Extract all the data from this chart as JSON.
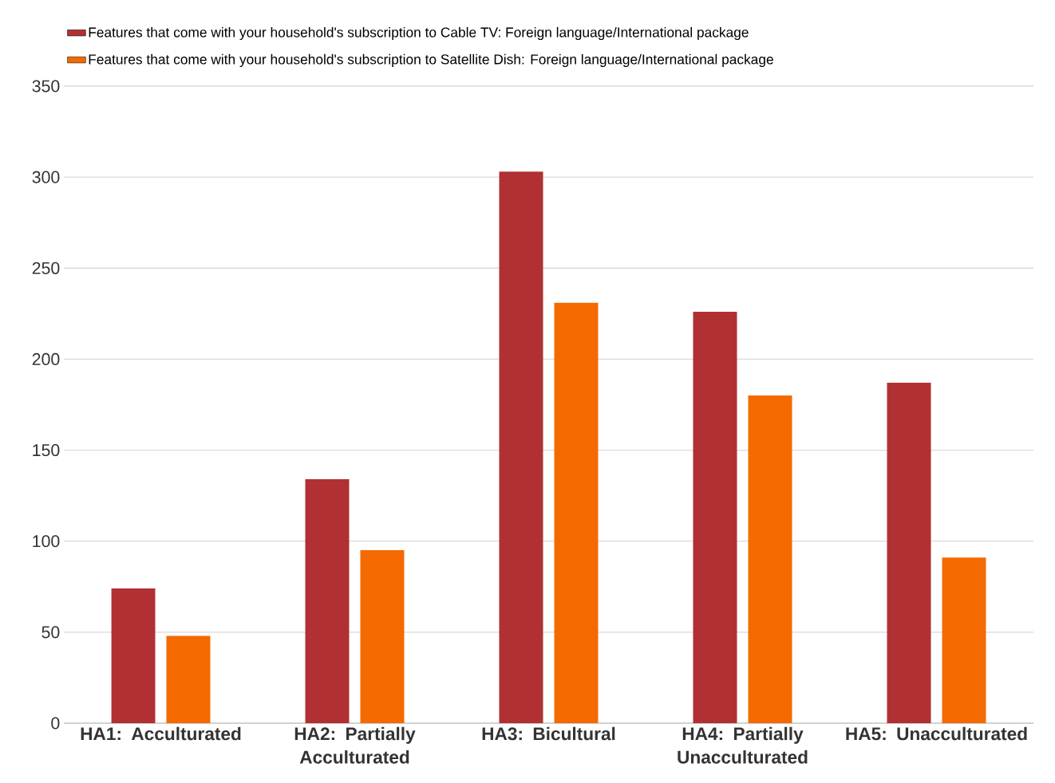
{
  "chart_data": {
    "type": "bar",
    "categories": [
      "HA1: Acculturated",
      "HA2: Partially Acculturated",
      "HA3: Bicultural",
      "HA4: Partially Unacculturated",
      "HA5: Unacculturated"
    ],
    "series": [
      {
        "name": "Features that come with your household's subscription to Cable TV: Foreign language/International package",
        "color": "#b03033",
        "values": [
          74,
          134,
          303,
          226,
          187
        ]
      },
      {
        "name": "Features that come with your household's subscription to Satellite Dish: Foreign language/International package",
        "color": "#f46a00",
        "values": [
          48,
          95,
          231,
          180,
          91
        ]
      }
    ],
    "ylim": [
      0,
      350
    ],
    "yticks": [
      0,
      50,
      100,
      150,
      200,
      250,
      300,
      350
    ],
    "grid": "y",
    "legend": "top"
  }
}
